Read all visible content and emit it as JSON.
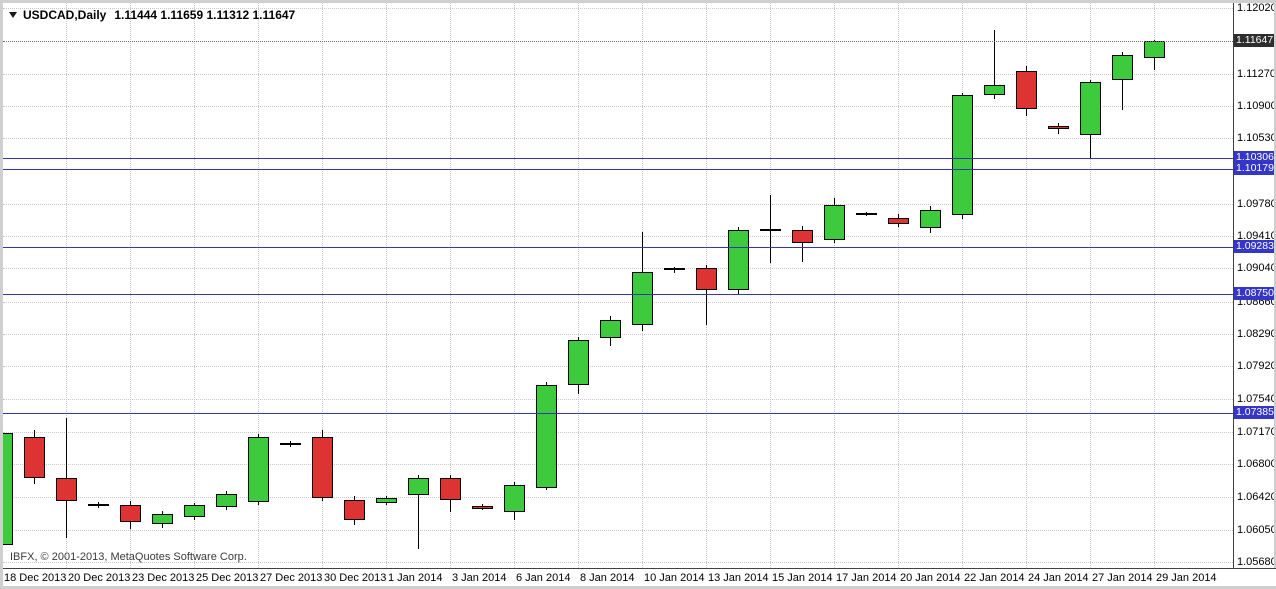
{
  "window": {
    "title": "USDCAD,Daily",
    "ohlc_line": "1.11444 1.11659 1.11312 1.11647",
    "copyright": "IBFX, © 2001-2013, MetaQuotes Software Corp."
  },
  "colors": {
    "background": "#ffffff",
    "grid": "#c9c9c9",
    "bull": "#3dca3d",
    "bear": "#dd3333",
    "candle_outline": "#000000",
    "level_line": "#3434bc",
    "level_badge_bg": "#3535c8",
    "level_badge_text": "#ffffff",
    "bid_line": "#6a6a6a",
    "bid_badge_bg": "#2e2e2e",
    "bid_badge_text": "#ffffff",
    "axis_text": "#000000"
  },
  "y_axis": {
    "max": 1.1202,
    "min": 1.0568,
    "labels": [
      "1.12020",
      "1.11270",
      "1.10900",
      "1.10530",
      "1.09780",
      "1.09410",
      "1.09040",
      "1.08660",
      "1.08290",
      "1.07920",
      "1.07540",
      "1.07170",
      "1.06800",
      "1.06420",
      "1.06050",
      "1.05680"
    ]
  },
  "x_axis": {
    "labels": [
      {
        "text": "18 Dec 2013",
        "candle_index": 0
      },
      {
        "text": "20 Dec 2013",
        "candle_index": 2
      },
      {
        "text": "23 Dec 2013",
        "candle_index": 4
      },
      {
        "text": "25 Dec 2013",
        "candle_index": 6
      },
      {
        "text": "27 Dec 2013",
        "candle_index": 8
      },
      {
        "text": "30 Dec 2013",
        "candle_index": 10
      },
      {
        "text": "1 Jan 2014",
        "candle_index": 12
      },
      {
        "text": "3 Jan 2014",
        "candle_index": 14
      },
      {
        "text": "6 Jan 2014",
        "candle_index": 16
      },
      {
        "text": "8 Jan 2014",
        "candle_index": 18
      },
      {
        "text": "10 Jan 2014",
        "candle_index": 20
      },
      {
        "text": "13 Jan 2014",
        "candle_index": 22
      },
      {
        "text": "15 Jan 2014",
        "candle_index": 24
      },
      {
        "text": "17 Jan 2014",
        "candle_index": 26
      },
      {
        "text": "20 Jan 2014",
        "candle_index": 28
      },
      {
        "text": "22 Jan 2014",
        "candle_index": 30
      },
      {
        "text": "24 Jan 2014",
        "candle_index": 32
      },
      {
        "text": "27 Jan 2014",
        "candle_index": 34
      },
      {
        "text": "29 Jan 2014",
        "candle_index": 36
      }
    ]
  },
  "levels": [
    "1.10306",
    "1.10179",
    "1.09283",
    "1.08750",
    "1.07385"
  ],
  "bid": "1.11647",
  "chart_data": {
    "type": "candlestick",
    "symbol": "USDCAD",
    "timeframe": "Daily",
    "title": "USDCAD Daily",
    "ylim": [
      1.0568,
      1.1202
    ],
    "grid": true,
    "candles": [
      {
        "date": "18 Dec 2013",
        "o": 1.0587,
        "h": 1.072,
        "l": 1.0585,
        "c": 1.0716
      },
      {
        "date": "19 Dec 2013",
        "o": 1.0711,
        "h": 1.0719,
        "l": 1.0657,
        "c": 1.0664
      },
      {
        "date": "20 Dec 2013",
        "o": 1.0664,
        "h": 1.0733,
        "l": 1.0595,
        "c": 1.0638
      },
      {
        "date": "22 Dec 2013",
        "o": 1.0634,
        "h": 1.0637,
        "l": 1.063,
        "c": 1.0633
      },
      {
        "date": "23 Dec 2013",
        "o": 1.0633,
        "h": 1.0638,
        "l": 1.0606,
        "c": 1.0614
      },
      {
        "date": "24 Dec 2013",
        "o": 1.0611,
        "h": 1.0626,
        "l": 1.0607,
        "c": 1.0623
      },
      {
        "date": "25 Dec 2013",
        "o": 1.0619,
        "h": 1.0635,
        "l": 1.0616,
        "c": 1.0633
      },
      {
        "date": "26 Dec 2013",
        "o": 1.0631,
        "h": 1.0649,
        "l": 1.0627,
        "c": 1.0646
      },
      {
        "date": "27 Dec 2013",
        "o": 1.0637,
        "h": 1.0714,
        "l": 1.0633,
        "c": 1.0711
      },
      {
        "date": "29 Dec 2013",
        "o": 1.0703,
        "h": 1.0707,
        "l": 1.07,
        "c": 1.0704
      },
      {
        "date": "30 Dec 2013",
        "o": 1.0711,
        "h": 1.0719,
        "l": 1.0638,
        "c": 1.0641
      },
      {
        "date": "31 Dec 2013",
        "o": 1.0639,
        "h": 1.0643,
        "l": 1.061,
        "c": 1.0616
      },
      {
        "date": "1 Jan 2014",
        "o": 1.0635,
        "h": 1.0643,
        "l": 1.0633,
        "c": 1.0641
      },
      {
        "date": "2 Jan 2014",
        "o": 1.0645,
        "h": 1.0667,
        "l": 1.0583,
        "c": 1.0664
      },
      {
        "date": "3 Jan 2014",
        "o": 1.0664,
        "h": 1.0667,
        "l": 1.0625,
        "c": 1.0639
      },
      {
        "date": "5 Jan 2014",
        "o": 1.0632,
        "h": 1.0634,
        "l": 1.0627,
        "c": 1.0629
      },
      {
        "date": "6 Jan 2014",
        "o": 1.0625,
        "h": 1.0659,
        "l": 1.0616,
        "c": 1.0656
      },
      {
        "date": "7 Jan 2014",
        "o": 1.0653,
        "h": 1.0774,
        "l": 1.065,
        "c": 1.0771
      },
      {
        "date": "8 Jan 2014",
        "o": 1.0771,
        "h": 1.0825,
        "l": 1.076,
        "c": 1.0822
      },
      {
        "date": "9 Jan 2014",
        "o": 1.0824,
        "h": 1.0849,
        "l": 1.0815,
        "c": 1.0845
      },
      {
        "date": "10 Jan 2014",
        "o": 1.0839,
        "h": 1.0946,
        "l": 1.0832,
        "c": 1.09
      },
      {
        "date": "12 Jan 2014",
        "o": 1.0903,
        "h": 1.0906,
        "l": 1.0899,
        "c": 1.0904
      },
      {
        "date": "13 Jan 2014",
        "o": 1.0904,
        "h": 1.0908,
        "l": 1.0839,
        "c": 1.0879
      },
      {
        "date": "14 Jan 2014",
        "o": 1.0879,
        "h": 1.0951,
        "l": 1.0875,
        "c": 1.0948
      },
      {
        "date": "15 Jan 2014",
        "o": 1.0947,
        "h": 1.0988,
        "l": 1.091,
        "c": 1.0949
      },
      {
        "date": "16 Jan 2014",
        "o": 1.0948,
        "h": 1.0952,
        "l": 1.0911,
        "c": 1.0933
      },
      {
        "date": "17 Jan 2014",
        "o": 1.0937,
        "h": 1.0985,
        "l": 1.0933,
        "c": 1.0977
      },
      {
        "date": "19 Jan 2014",
        "o": 1.0966,
        "h": 1.0969,
        "l": 1.0964,
        "c": 1.0967
      },
      {
        "date": "20 Jan 2014",
        "o": 1.0962,
        "h": 1.0966,
        "l": 1.0951,
        "c": 1.0955
      },
      {
        "date": "21 Jan 2014",
        "o": 1.095,
        "h": 1.0975,
        "l": 1.0945,
        "c": 1.0971
      },
      {
        "date": "22 Jan 2014",
        "o": 1.0965,
        "h": 1.1105,
        "l": 1.096,
        "c": 1.1102
      },
      {
        "date": "23 Jan 2014",
        "o": 1.1102,
        "h": 1.1177,
        "l": 1.1098,
        "c": 1.1114
      },
      {
        "date": "24 Jan 2014",
        "o": 1.113,
        "h": 1.1136,
        "l": 1.1078,
        "c": 1.1086
      },
      {
        "date": "26 Jan 2014",
        "o": 1.1067,
        "h": 1.107,
        "l": 1.1058,
        "c": 1.1063
      },
      {
        "date": "27 Jan 2014",
        "o": 1.1057,
        "h": 1.112,
        "l": 1.103,
        "c": 1.1117
      },
      {
        "date": "28 Jan 2014",
        "o": 1.112,
        "h": 1.1152,
        "l": 1.1085,
        "c": 1.1148
      },
      {
        "date": "29 Jan 2014",
        "o": 1.11444,
        "h": 1.11659,
        "l": 1.11312,
        "c": 1.11647
      }
    ]
  }
}
